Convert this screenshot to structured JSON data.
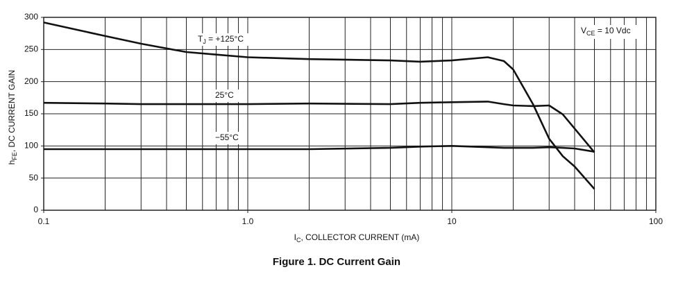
{
  "chart_data": {
    "type": "line",
    "title": "Figure 1. DC Current Gain",
    "x_label": [
      "I",
      "C",
      ", COLLECTOR CURRENT (mA)"
    ],
    "y_label": [
      "h",
      "FE",
      ", DC CURRENT GAIN"
    ],
    "x": [
      0.1,
      0.2,
      0.3,
      0.5,
      0.7,
      1,
      2,
      5,
      7,
      10,
      15,
      18,
      20,
      25,
      30,
      35,
      40,
      50
    ],
    "series": [
      {
        "name": [
          "T",
          "J",
          " = +125°C"
        ],
        "color": "#111111",
        "values": [
          292,
          271,
          259,
          246,
          242,
          238,
          235,
          233,
          231,
          233,
          238,
          232,
          219,
          165,
          111,
          84,
          68,
          33
        ]
      },
      {
        "name": [
          "25°C"
        ],
        "color": "#111111",
        "values": [
          167,
          166,
          165,
          165,
          165,
          165,
          166,
          165,
          167,
          168,
          169,
          165,
          163,
          162,
          163,
          149,
          127,
          90
        ]
      },
      {
        "name": [
          "−55°C"
        ],
        "color": "#111111",
        "values": [
          95,
          95,
          95,
          95,
          95,
          95,
          95,
          97,
          99,
          100,
          98,
          97,
          97,
          97,
          98,
          97,
          96,
          91
        ]
      }
    ],
    "annotations": [
      [
        "V",
        "CE",
        " = 10 Vdc"
      ]
    ],
    "x_log": true,
    "xlim": [
      0.1,
      100
    ],
    "xticks": [
      0.1,
      {
        "value": 1,
        "label": "1.0"
      },
      10,
      100
    ],
    "xminor": [
      0.2,
      0.3,
      0.4,
      0.5,
      0.6,
      0.7,
      0.8,
      0.9,
      2,
      3,
      4,
      5,
      6,
      7,
      8,
      9,
      20,
      30,
      40,
      50,
      60,
      70,
      80,
      90
    ],
    "ylim": [
      0,
      300
    ],
    "yticks": [
      0,
      50,
      100,
      150,
      200,
      250,
      300
    ],
    "grid": true
  }
}
